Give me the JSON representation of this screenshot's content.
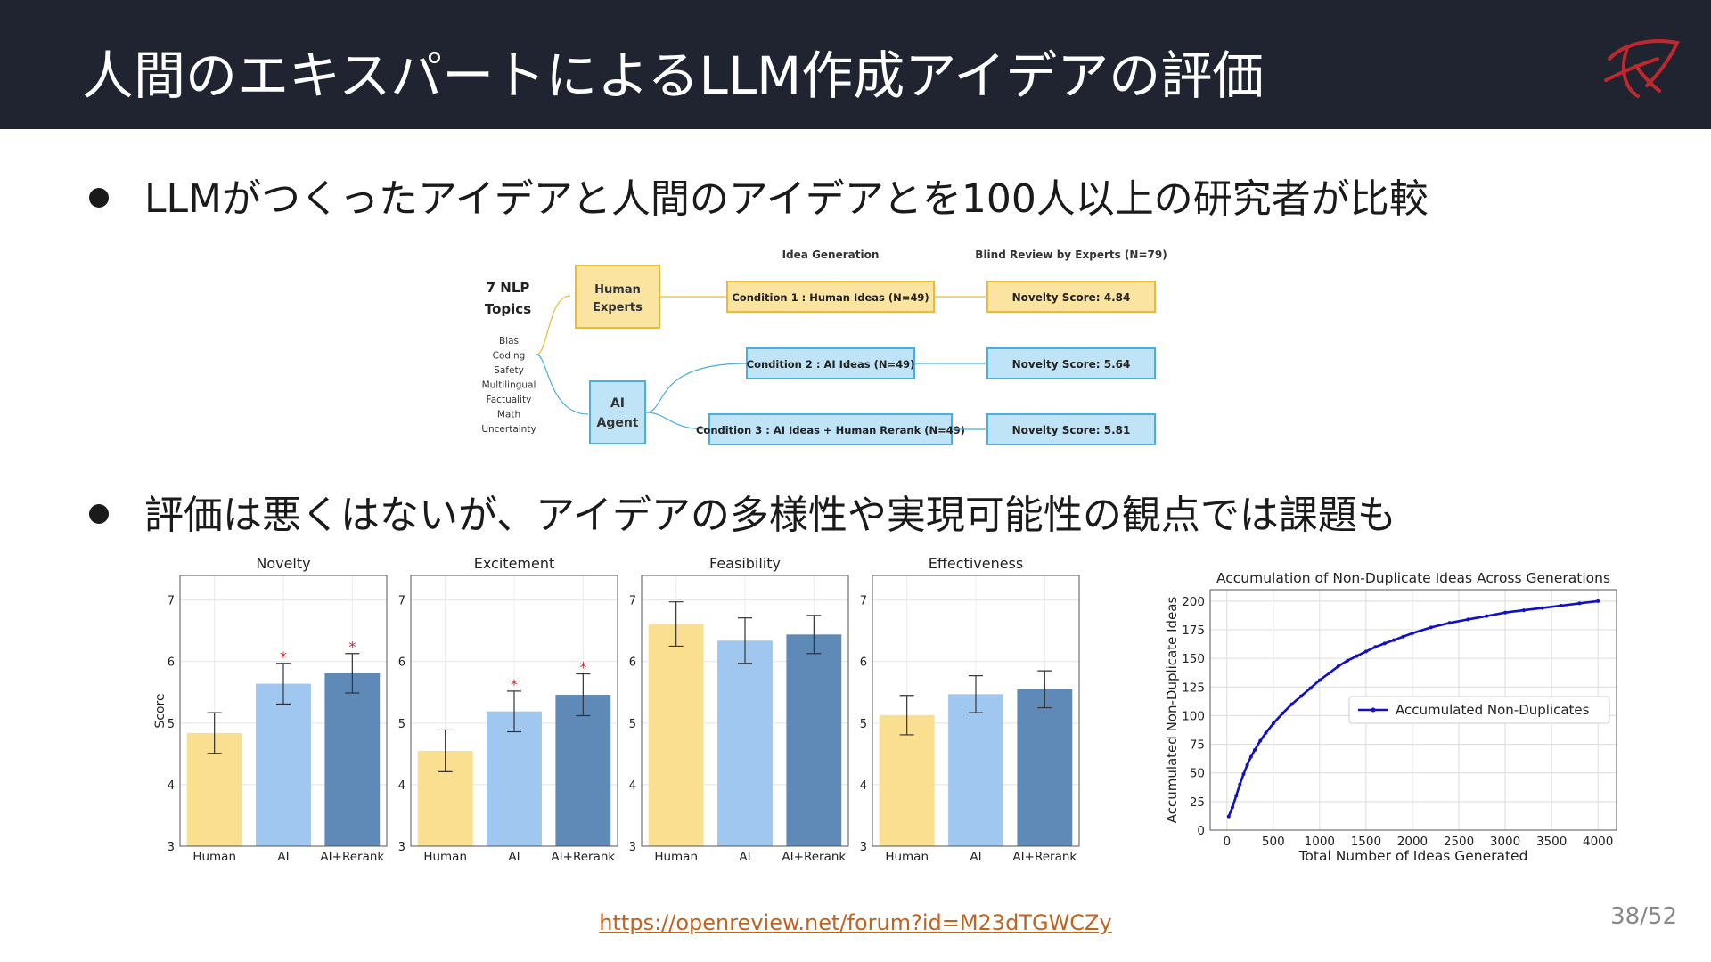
{
  "slide": {
    "title": "人間のエキスパートによるLLM作成アイデアの評価",
    "bullets": [
      "LLMがつくったアイデアと人間のアイデアとを100人以上の研究者が比較",
      "評価は悪くはないが、アイデアの多様性や実現可能性の観点では課題も"
    ],
    "link": "https://openreview.net/forum?id=M23dTGWCZy",
    "page": "38/52",
    "accent_color": "#c0282d"
  },
  "flow": {
    "topics_title": "7 NLP\nTopics",
    "topics": [
      "Bias",
      "Coding",
      "Safety",
      "Multilingual",
      "Factuality",
      "Math",
      "Uncertainty"
    ],
    "human_node": "Human\nExperts",
    "ai_node": "AI\nAgent",
    "col_generation": "Idea Generation",
    "col_review": "Blind Review by Experts (N=79)",
    "conditions": [
      {
        "label": "Condition 1 : Human Ideas (N=49)",
        "score": "Novelty Score: 4.84",
        "kind": "human"
      },
      {
        "label": "Condition 2 : AI Ideas (N=49)",
        "score": "Novelty Score: 5.64",
        "kind": "ai"
      },
      {
        "label": "Condition 3 : AI Ideas + Human Rerank (N=49)",
        "score": "Novelty Score: 5.81",
        "kind": "ai"
      }
    ],
    "colors": {
      "human_fill": "#fbe3a0",
      "human_stroke": "#e8bb3a",
      "ai_fill": "#bfe3f7",
      "ai_stroke": "#4aaee0"
    }
  },
  "chart_data": [
    {
      "type": "bar",
      "title": "Novelty",
      "ylabel": "Score",
      "categories": [
        "Human",
        "AI",
        "AI+Rerank"
      ],
      "values": [
        4.84,
        5.64,
        5.81
      ],
      "error": [
        0.33,
        0.33,
        0.32
      ],
      "significant": [
        false,
        true,
        true
      ],
      "ylim": [
        3,
        7.4
      ],
      "yticks": [
        3,
        4,
        5,
        6,
        7
      ],
      "colors": [
        "#f9df8f",
        "#9fc7f0",
        "#5f8ab8"
      ],
      "grid": true
    },
    {
      "type": "bar",
      "title": "Excitement",
      "ylabel": "",
      "categories": [
        "Human",
        "AI",
        "AI+Rerank"
      ],
      "values": [
        4.55,
        5.19,
        5.46
      ],
      "error": [
        0.34,
        0.33,
        0.34
      ],
      "significant": [
        false,
        true,
        true
      ],
      "ylim": [
        3,
        7.4
      ],
      "yticks": [
        3,
        4,
        5,
        6,
        7
      ],
      "colors": [
        "#f9df8f",
        "#9fc7f0",
        "#5f8ab8"
      ],
      "grid": true
    },
    {
      "type": "bar",
      "title": "Feasibility",
      "ylabel": "",
      "categories": [
        "Human",
        "AI",
        "AI+Rerank"
      ],
      "values": [
        6.61,
        6.34,
        6.44
      ],
      "error": [
        0.36,
        0.37,
        0.31
      ],
      "significant": [
        false,
        false,
        false
      ],
      "ylim": [
        3,
        7.4
      ],
      "yticks": [
        3,
        4,
        5,
        6,
        7
      ],
      "colors": [
        "#f9df8f",
        "#9fc7f0",
        "#5f8ab8"
      ],
      "grid": true
    },
    {
      "type": "bar",
      "title": "Effectiveness",
      "ylabel": "",
      "categories": [
        "Human",
        "AI",
        "AI+Rerank"
      ],
      "values": [
        5.13,
        5.47,
        5.55
      ],
      "error": [
        0.32,
        0.3,
        0.3
      ],
      "significant": [
        false,
        false,
        false
      ],
      "ylim": [
        3,
        7.4
      ],
      "yticks": [
        3,
        4,
        5,
        6,
        7
      ],
      "colors": [
        "#f9df8f",
        "#9fc7f0",
        "#5f8ab8"
      ],
      "grid": true
    },
    {
      "type": "line",
      "title": "Accumulation of Non-Duplicate Ideas Across Generations",
      "xlabel": "Total Number of Ideas Generated",
      "ylabel": "Accumulated Non-Duplicate Ideas",
      "xlim": [
        -180,
        4200
      ],
      "ylim": [
        0,
        210
      ],
      "xticks": [
        0,
        500,
        1000,
        1500,
        2000,
        2500,
        3000,
        3500,
        4000
      ],
      "yticks": [
        0,
        25,
        50,
        75,
        100,
        125,
        150,
        175,
        200
      ],
      "grid": true,
      "legend_position": "center-right",
      "series": [
        {
          "name": "Accumulated Non-Duplicates",
          "color": "#1010c8",
          "x": [
            20,
            60,
            100,
            140,
            180,
            220,
            260,
            300,
            360,
            420,
            500,
            600,
            700,
            800,
            900,
            1000,
            1100,
            1200,
            1300,
            1400,
            1500,
            1600,
            1700,
            1800,
            1900,
            2000,
            2200,
            2400,
            2600,
            2800,
            3000,
            3200,
            3400,
            3600,
            3800,
            4000
          ],
          "y": [
            12,
            20,
            30,
            40,
            49,
            57,
            64,
            70,
            78,
            85,
            93,
            102,
            110,
            117,
            124,
            131,
            137,
            143,
            148,
            152,
            156,
            160,
            163,
            166,
            169,
            172,
            177,
            181,
            184,
            187,
            190,
            192,
            194,
            196,
            198,
            200
          ]
        }
      ]
    }
  ]
}
